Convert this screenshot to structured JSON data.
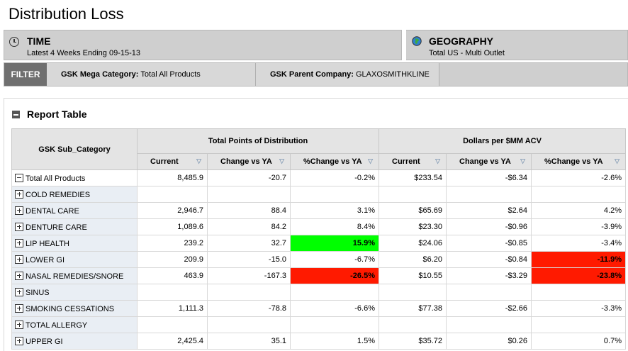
{
  "page": {
    "title": "Distribution Loss"
  },
  "context": {
    "time": {
      "title": "TIME",
      "value": "Latest 4 Weeks Ending 09-15-13"
    },
    "geography": {
      "title": "GEOGRAPHY",
      "value": "Total US - Multi Outlet"
    }
  },
  "filter": {
    "tag": "FILTER",
    "items": [
      {
        "label": "GSK Mega Category:",
        "value": "Total All Products"
      },
      {
        "label": "GSK Parent Company:",
        "value": "GLAXOSMITHKLINE"
      }
    ]
  },
  "report": {
    "title": "Report Table",
    "row_header": "GSK Sub_Category",
    "groups": [
      "Total Points of Distribution",
      "Dollars per $MM ACV"
    ],
    "columns": [
      "Current",
      "Change vs YA",
      "%Change vs YA",
      "Current",
      "Change vs YA",
      "%Change vs YA"
    ],
    "rows": [
      {
        "label": "Total All Products",
        "expand": "minus",
        "cells": [
          "8,485.9",
          "-20.7",
          "-0.2%",
          "$233.54",
          "-$6.34",
          "-2.6%"
        ]
      },
      {
        "label": "COLD REMEDIES",
        "expand": "plus",
        "cells": [
          "",
          "",
          "",
          "",
          "",
          ""
        ]
      },
      {
        "label": "DENTAL CARE",
        "expand": "plus",
        "cells": [
          "2,946.7",
          "88.4",
          "3.1%",
          "$65.69",
          "$2.64",
          "4.2%"
        ]
      },
      {
        "label": "DENTURE CARE",
        "expand": "plus",
        "cells": [
          "1,089.6",
          "84.2",
          "8.4%",
          "$23.30",
          "-$0.96",
          "-3.9%"
        ]
      },
      {
        "label": "LIP HEALTH",
        "expand": "plus",
        "cells": [
          "239.2",
          "32.7",
          "15.9%",
          "$24.06",
          "-$0.85",
          "-3.4%"
        ],
        "highlight": [
          null,
          null,
          "green",
          null,
          null,
          null
        ]
      },
      {
        "label": "LOWER GI",
        "expand": "plus",
        "cells": [
          "209.9",
          "-15.0",
          "-6.7%",
          "$6.20",
          "-$0.84",
          "-11.9%"
        ],
        "highlight": [
          null,
          null,
          null,
          null,
          null,
          "red"
        ]
      },
      {
        "label": "NASAL REMEDIES/SNORE",
        "expand": "plus",
        "cells": [
          "463.9",
          "-167.3",
          "-26.5%",
          "$10.55",
          "-$3.29",
          "-23.8%"
        ],
        "highlight": [
          null,
          null,
          "red",
          null,
          null,
          "red"
        ]
      },
      {
        "label": "SINUS",
        "expand": "plus",
        "cells": [
          "",
          "",
          "",
          "",
          "",
          ""
        ]
      },
      {
        "label": "SMOKING CESSATIONS",
        "expand": "plus",
        "cells": [
          "1,111.3",
          "-78.8",
          "-6.6%",
          "$77.38",
          "-$2.66",
          "-3.3%"
        ]
      },
      {
        "label": "TOTAL ALLERGY",
        "expand": "plus",
        "cells": [
          "",
          "",
          "",
          "",
          "",
          ""
        ]
      },
      {
        "label": "UPPER GI",
        "expand": "plus",
        "cells": [
          "2,425.4",
          "35.1",
          "1.5%",
          "$35.72",
          "$0.26",
          "0.7%"
        ]
      }
    ]
  },
  "colors": {
    "highlight_green": "#00ff00",
    "highlight_red": "#ff1a00",
    "filter_tag": "#6f6f6f"
  }
}
